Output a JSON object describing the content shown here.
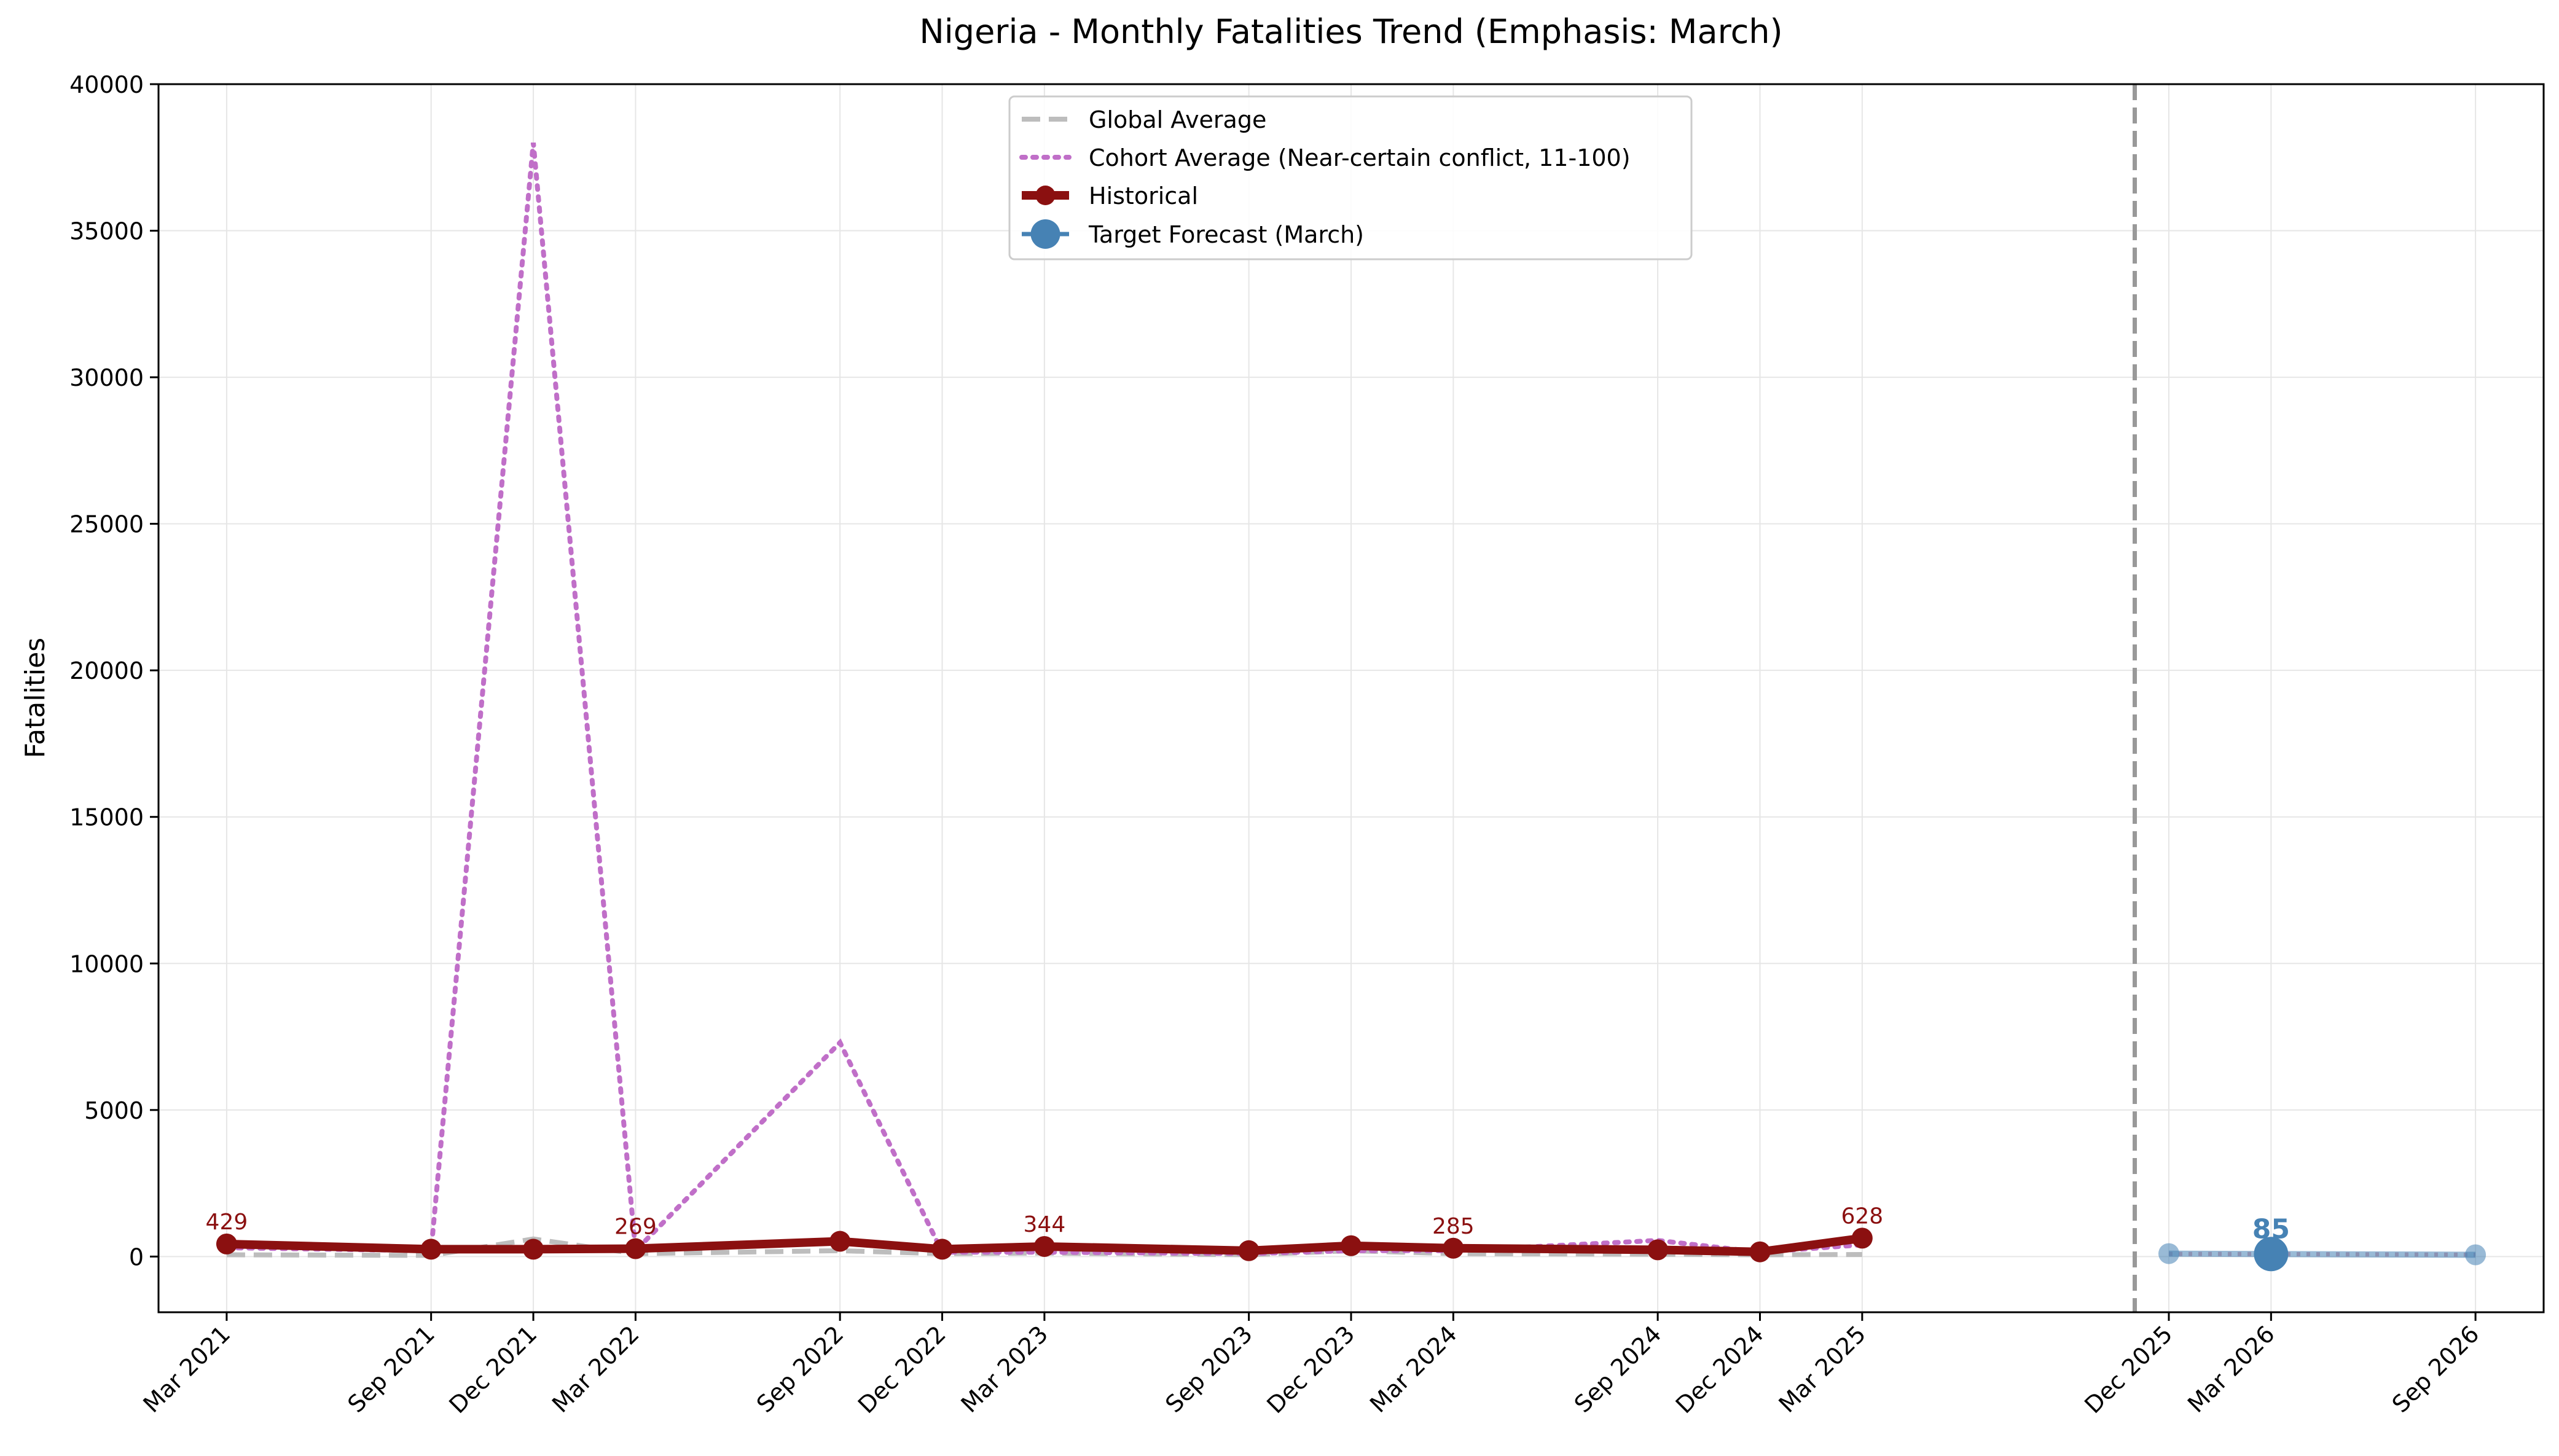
{
  "chart_data": {
    "type": "line",
    "title": "Nigeria - Monthly Fatalities Trend (Emphasis: March)",
    "xlabel": "",
    "ylabel": "Fatalities",
    "ylim": [
      -1900,
      40000
    ],
    "yticks": [
      0,
      5000,
      10000,
      15000,
      20000,
      25000,
      30000,
      35000,
      40000
    ],
    "x_range": [
      "2021-01",
      "2026-11"
    ],
    "xticks": [
      {
        "date": "2021-03",
        "label": "Mar 2021"
      },
      {
        "date": "2021-09",
        "label": "Sep 2021"
      },
      {
        "date": "2021-12",
        "label": "Dec 2021"
      },
      {
        "date": "2022-03",
        "label": "Mar 2022"
      },
      {
        "date": "2022-09",
        "label": "Sep 2022"
      },
      {
        "date": "2022-12",
        "label": "Dec 2022"
      },
      {
        "date": "2023-03",
        "label": "Mar 2023"
      },
      {
        "date": "2023-09",
        "label": "Sep 2023"
      },
      {
        "date": "2023-12",
        "label": "Dec 2023"
      },
      {
        "date": "2024-03",
        "label": "Mar 2024"
      },
      {
        "date": "2024-09",
        "label": "Sep 2024"
      },
      {
        "date": "2024-12",
        "label": "Dec 2024"
      },
      {
        "date": "2025-03",
        "label": "Mar 2025"
      },
      {
        "date": "2025-12",
        "label": "Dec 2025"
      },
      {
        "date": "2026-03",
        "label": "Mar 2026"
      },
      {
        "date": "2026-09",
        "label": "Sep 2026"
      }
    ],
    "grid": true,
    "legend_position": "upper-center",
    "forecast_divider_date": "2025-11",
    "series": [
      {
        "name": "Global Average",
        "style": "dashed",
        "color": "#bdbdbd",
        "x": [
          "2021-03",
          "2021-09",
          "2021-12",
          "2022-03",
          "2022-09",
          "2022-12",
          "2023-03",
          "2023-09",
          "2023-12",
          "2024-03",
          "2024-09",
          "2024-12",
          "2025-03"
        ],
        "y": [
          60,
          40,
          600,
          100,
          200,
          100,
          120,
          60,
          200,
          100,
          80,
          60,
          70
        ]
      },
      {
        "name": "Cohort Average (Near-certain conflict, 11-100)",
        "style": "dotted",
        "color": "#c06fc8",
        "x": [
          "2021-03",
          "2021-09",
          "2021-12",
          "2022-03",
          "2022-09",
          "2022-12",
          "2023-03",
          "2023-09",
          "2023-12",
          "2024-03",
          "2024-09",
          "2024-12",
          "2025-03"
        ],
        "y": [
          300,
          200,
          38000,
          200,
          7300,
          150,
          150,
          100,
          200,
          200,
          550,
          150,
          400
        ]
      },
      {
        "name": "Historical",
        "style": "solid",
        "color": "#8b1010",
        "x": [
          "2021-03",
          "2021-09",
          "2021-12",
          "2022-03",
          "2022-09",
          "2022-12",
          "2023-03",
          "2023-09",
          "2023-12",
          "2024-03",
          "2024-09",
          "2024-12",
          "2025-03"
        ],
        "y": [
          429,
          250,
          250,
          269,
          520,
          250,
          344,
          200,
          370,
          285,
          230,
          160,
          628
        ]
      },
      {
        "name": "Target Forecast (March)",
        "style": "solid",
        "color": "#4682b4",
        "x": [
          "2025-12",
          "2026-03",
          "2026-09"
        ],
        "y": [
          100,
          85,
          60
        ]
      }
    ],
    "forecast_dotted": {
      "color": "#8888aa",
      "x": [
        "2025-12",
        "2026-03",
        "2026-09"
      ],
      "y": [
        90,
        85,
        60
      ]
    },
    "data_labels": [
      {
        "series": "Historical",
        "date": "2021-03",
        "value": 429,
        "text": "429",
        "color": "#8b1010"
      },
      {
        "series": "Historical",
        "date": "2022-03",
        "value": 269,
        "text": "269",
        "color": "#8b1010"
      },
      {
        "series": "Historical",
        "date": "2023-03",
        "value": 344,
        "text": "344",
        "color": "#8b1010"
      },
      {
        "series": "Historical",
        "date": "2024-03",
        "value": 285,
        "text": "285",
        "color": "#8b1010"
      },
      {
        "series": "Historical",
        "date": "2025-03",
        "value": 628,
        "text": "628",
        "color": "#8b1010"
      },
      {
        "series": "Target Forecast (March)",
        "date": "2026-03",
        "value": 85,
        "text": "85",
        "color": "#4682b4"
      }
    ]
  }
}
